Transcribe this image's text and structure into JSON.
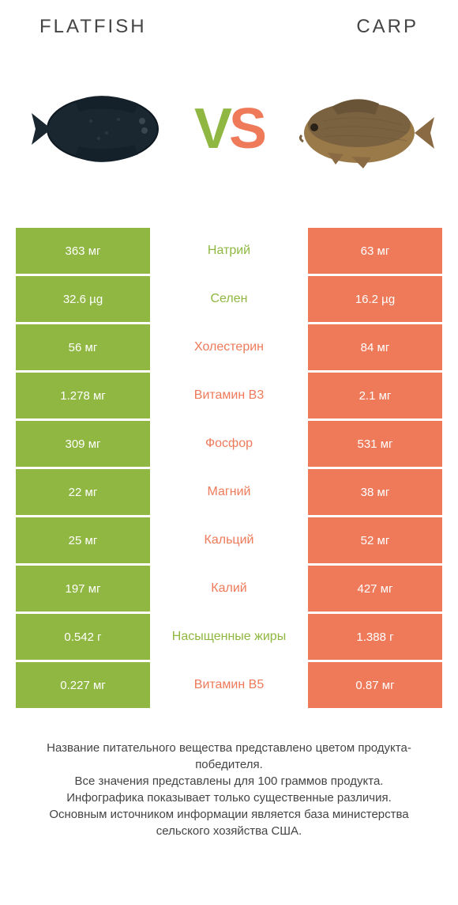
{
  "colors": {
    "green": "#8fb741",
    "orange": "#ee7a5a",
    "vs_v": "#8fb741",
    "vs_s": "#ee7a5a"
  },
  "header": {
    "left": "FLATFISH",
    "right": "CARP"
  },
  "vs": {
    "v": "V",
    "s": "S"
  },
  "rows": [
    {
      "left": "363 мг",
      "mid": "Натрий",
      "right": "63 мг",
      "winner": "left"
    },
    {
      "left": "32.6 µg",
      "mid": "Селен",
      "right": "16.2 µg",
      "winner": "left"
    },
    {
      "left": "56 мг",
      "mid": "Холестерин",
      "right": "84 мг",
      "winner": "right"
    },
    {
      "left": "1.278 мг",
      "mid": "Витамин B3",
      "right": "2.1 мг",
      "winner": "right"
    },
    {
      "left": "309 мг",
      "mid": "Фосфор",
      "right": "531 мг",
      "winner": "right"
    },
    {
      "left": "22 мг",
      "mid": "Магний",
      "right": "38 мг",
      "winner": "right"
    },
    {
      "left": "25 мг",
      "mid": "Кальций",
      "right": "52 мг",
      "winner": "right"
    },
    {
      "left": "197 мг",
      "mid": "Калий",
      "right": "427 мг",
      "winner": "right"
    },
    {
      "left": "0.542 г",
      "mid": "Насыщенные жиры",
      "right": "1.388 г",
      "winner": "left"
    },
    {
      "left": "0.227 мг",
      "mid": "Витамин B5",
      "right": "0.87 мг",
      "winner": "right"
    }
  ],
  "footer": "Название питательного вещества представлено цветом продукта-победителя.\nВсе значения представлены для 100 граммов продукта.\nИнфографика показывает только существенные различия.\nОсновным источником информации является база министерства сельского хозяйства США."
}
